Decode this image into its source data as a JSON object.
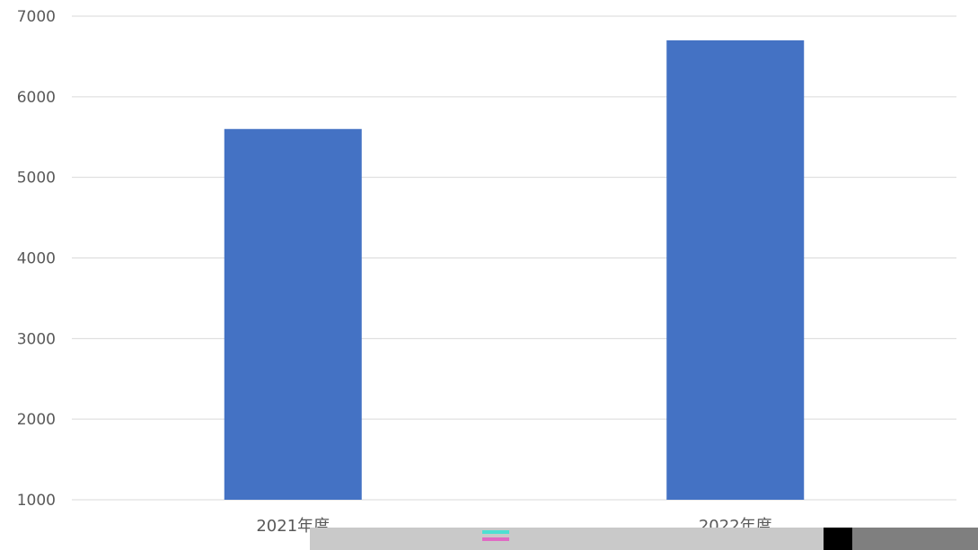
{
  "chart_data": {
    "type": "bar",
    "categories": [
      "2021年度",
      "2022年度"
    ],
    "values": [
      5600,
      6700
    ],
    "ylim": [
      1000,
      7000
    ],
    "yticks": [
      1000,
      2000,
      3000,
      4000,
      5000,
      6000,
      7000
    ],
    "grid": true,
    "bar_color": "#4472C4",
    "title": "",
    "xlabel": "",
    "ylabel": ""
  },
  "artifacts": {
    "bottom_strip_colors": [
      "#c7c7c7",
      "#000000",
      "#7f7f7f"
    ],
    "legend_glyph_colors": [
      "#4ee0d2",
      "#e06bc4"
    ]
  }
}
